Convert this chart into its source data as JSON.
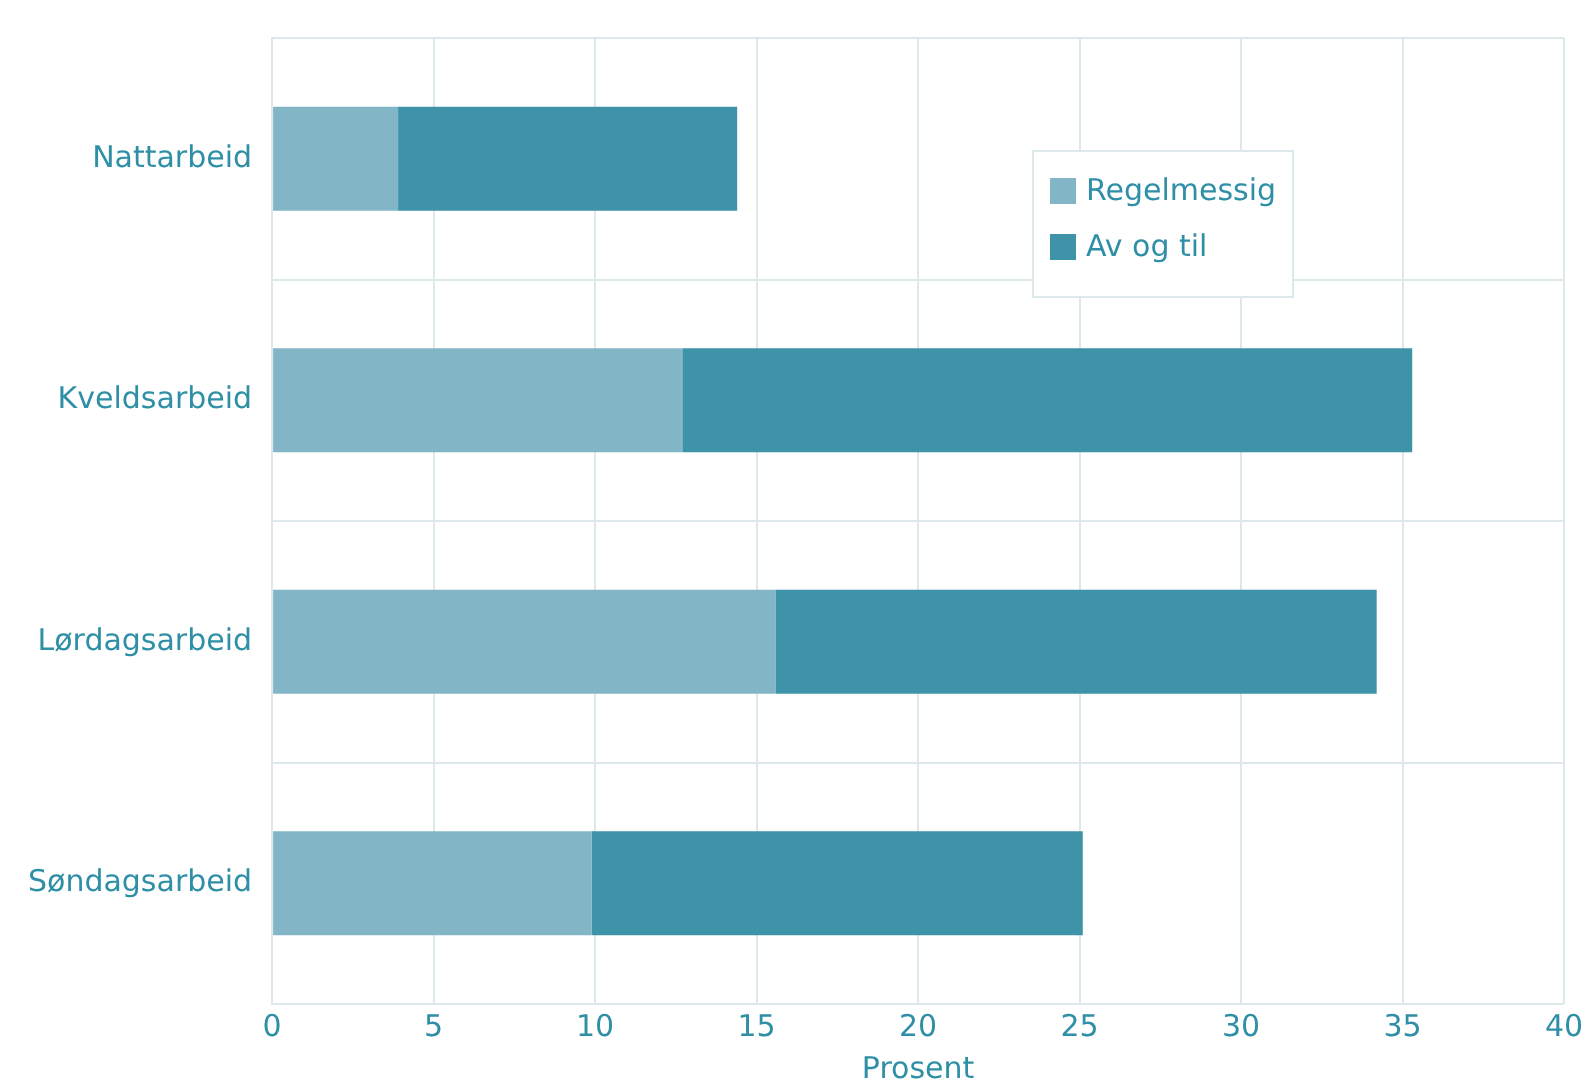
{
  "chart_data": {
    "type": "bar",
    "orientation": "horizontal",
    "stacked": true,
    "xlabel": "Prosent",
    "categories": [
      "Nattarbeid",
      "Kveldsarbeid",
      "Lørdagsarbeid",
      "Søndagsarbeid"
    ],
    "series": [
      {
        "name": "Regelmessig",
        "color": "#82b6c6",
        "values": [
          3.9,
          12.7,
          15.6,
          9.9
        ]
      },
      {
        "name": "Av og til",
        "color": "#3f93a8",
        "values": [
          10.5,
          22.6,
          18.6,
          15.2
        ]
      }
    ],
    "xlim": [
      0,
      40
    ],
    "xticks": [
      0,
      5,
      10,
      15,
      20,
      25,
      30,
      35,
      40
    ],
    "grid": true,
    "legend": "top right"
  }
}
